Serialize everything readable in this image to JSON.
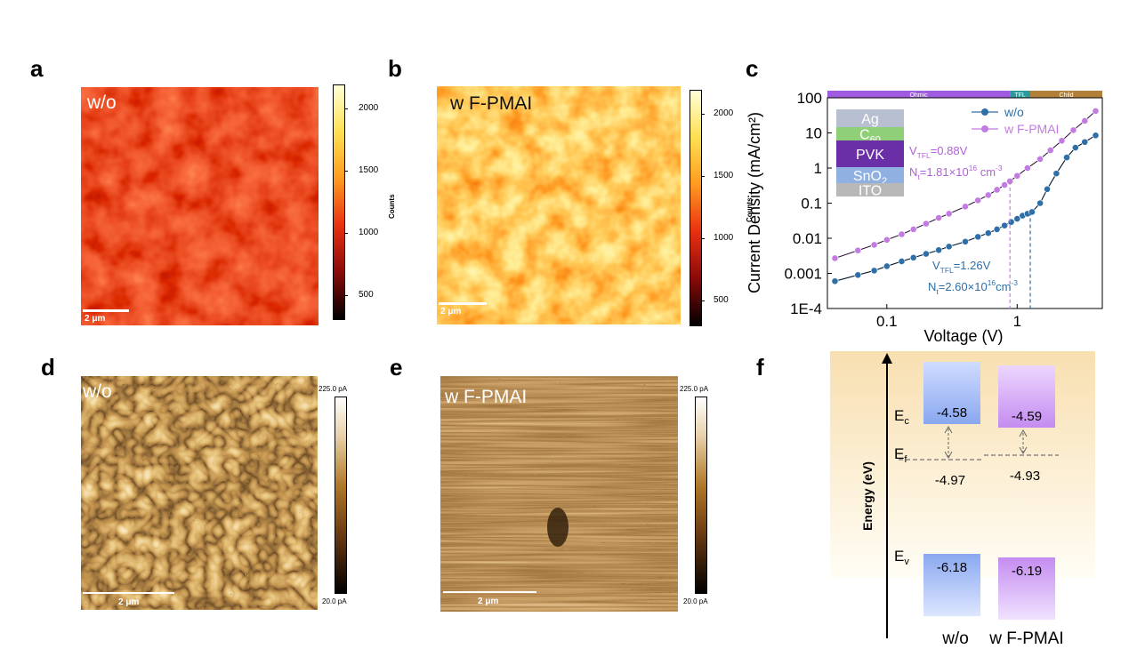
{
  "panels": {
    "a": {
      "label": "a",
      "overlay": "w/o",
      "scalebar": "2 μm",
      "colorbar_ticks": [
        "2000",
        "1500",
        "1000",
        "500"
      ],
      "colorbar_label": "Counts"
    },
    "b": {
      "label": "b",
      "overlay": "w F-PMAI",
      "scalebar": "2 μm",
      "colorbar_ticks": [
        "2000",
        "1500",
        "1000",
        "500"
      ],
      "colorbar_label": "Counts"
    },
    "c": {
      "label": "c"
    },
    "d": {
      "label": "d",
      "overlay": "w/o",
      "scalebar": "2 μm",
      "colorbar_max": "225.0 pA",
      "colorbar_min": "20.0 pA"
    },
    "e": {
      "label": "e",
      "overlay": "w F-PMAI",
      "scalebar": "2 μm",
      "colorbar_max": "225.0 pA",
      "colorbar_min": "20.0 pA"
    },
    "f": {
      "label": "f"
    }
  },
  "chart_data": [
    {
      "type": "scatter",
      "panel": "c",
      "xlabel": "Voltage (V)",
      "ylabel": "Current Density (mA/cm²)",
      "xscale": "log",
      "yscale": "log",
      "xlim": [
        0.035,
        4.5
      ],
      "ylim": [
        0.0001,
        100
      ],
      "x_ticks": [
        "0.1",
        "1"
      ],
      "y_ticks": [
        "100",
        "10",
        "1",
        "0.1",
        "0.01",
        "0.001",
        "1E-4"
      ],
      "regions": [
        {
          "name": "Ohmic",
          "color": "#a05ce0"
        },
        {
          "name": "TFL",
          "color": "#2a9a9a"
        },
        {
          "name": "Child",
          "color": "#b0803a"
        }
      ],
      "series": [
        {
          "name": "w/o",
          "color": "#2e6fa8",
          "x": [
            0.04,
            0.06,
            0.08,
            0.1,
            0.13,
            0.16,
            0.2,
            0.25,
            0.3,
            0.4,
            0.5,
            0.6,
            0.7,
            0.8,
            0.9,
            1.0,
            1.1,
            1.2,
            1.3,
            1.5,
            1.7,
            2.0,
            2.4,
            2.8,
            3.3,
            4.0
          ],
          "y": [
            0.0006,
            0.0009,
            0.0012,
            0.0016,
            0.0022,
            0.0028,
            0.0036,
            0.0046,
            0.0058,
            0.008,
            0.011,
            0.014,
            0.018,
            0.023,
            0.029,
            0.036,
            0.044,
            0.05,
            0.056,
            0.1,
            0.25,
            0.7,
            2.0,
            3.8,
            5.5,
            8.5
          ]
        },
        {
          "name": "w F-PMAI",
          "color": "#c27be0",
          "x": [
            0.04,
            0.06,
            0.08,
            0.1,
            0.13,
            0.16,
            0.2,
            0.25,
            0.3,
            0.4,
            0.5,
            0.6,
            0.7,
            0.8,
            0.88,
            1.0,
            1.2,
            1.5,
            1.8,
            2.2,
            2.7,
            3.3,
            4.0
          ],
          "y": [
            0.0027,
            0.0045,
            0.0065,
            0.009,
            0.013,
            0.018,
            0.026,
            0.038,
            0.05,
            0.08,
            0.12,
            0.17,
            0.24,
            0.33,
            0.42,
            0.6,
            1.0,
            1.8,
            3.2,
            6.0,
            12.0,
            22.0,
            42.0
          ]
        }
      ],
      "annotations": {
        "wF": {
          "v": "V",
          "vsub": "TFL",
          "val": "=0.88V",
          "n": "N",
          "nsub": "t",
          "nval": "=1.81×10",
          "nexp": "16",
          "nunit": " cm",
          "nuexp": "-3"
        },
        "wo": {
          "v": "V",
          "vsub": "TFL",
          "val": "=1.26V",
          "n": "N",
          "nsub": "t",
          "nval": "=2.60×10",
          "nexp": "16",
          "nunit": "cm",
          "nuexp": "-3"
        }
      },
      "stack": [
        {
          "name": "Ag",
          "color": "#b7bfd0"
        },
        {
          "name": "C",
          "sub": "60",
          "color": "#8fcf78"
        },
        {
          "name": "PVK",
          "color": "#6a2fa6"
        },
        {
          "name": "SnO",
          "sub": "2",
          "color": "#8fb0e0"
        },
        {
          "name": "ITO",
          "color": "#b8b8b8"
        }
      ]
    },
    {
      "type": "diagram",
      "panel": "f",
      "ylabel": "Energy (eV)",
      "categories": [
        "w/o",
        "w F-PMAI"
      ],
      "Ec_label": "E",
      "Ec_sub": "c",
      "Ef_label": "E",
      "Ef_sub": "f",
      "Ev_label": "E",
      "Ev_sub": "v",
      "values": {
        "w/o": {
          "Ec": "-4.58",
          "Ef": "-4.97",
          "Ev": "-6.18"
        },
        "w F-PMAI": {
          "Ec": "-4.59",
          "Ef": "-4.93",
          "Ev": "-6.19"
        }
      }
    }
  ]
}
